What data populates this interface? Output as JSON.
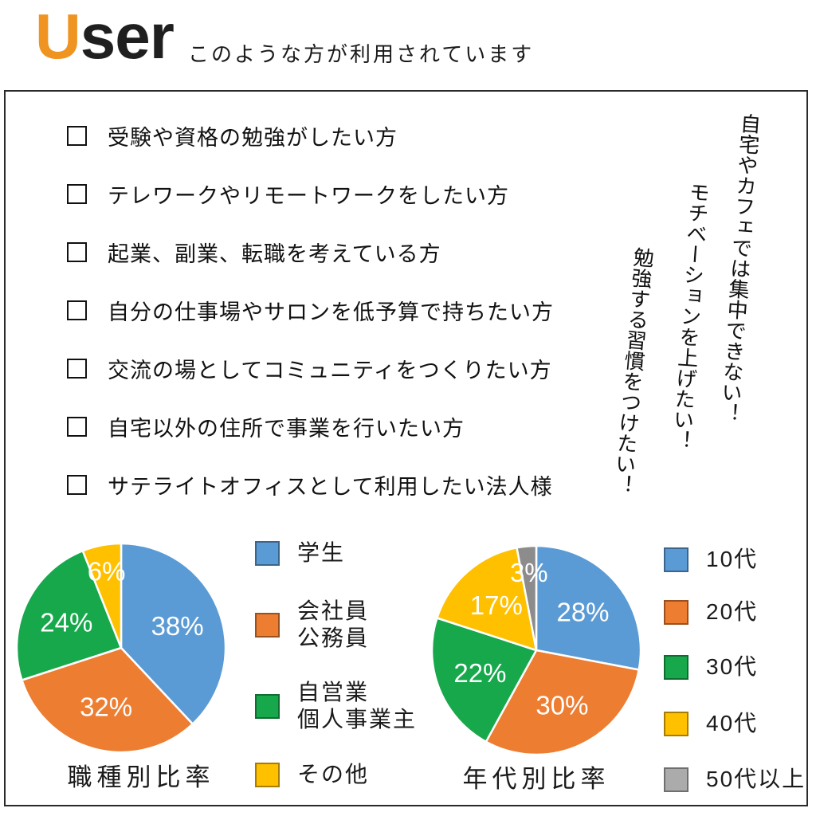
{
  "header": {
    "logo_accent": "U",
    "logo_rest": "ser",
    "subtitle": "このような方が利用されています"
  },
  "checklist": {
    "items": [
      "受験や資格の勉強がしたい方",
      "テレワークやリモートワークをしたい方",
      "起業、副業、転職を考えている方",
      "自分の仕事場やサロンを低予算で持ちたい方",
      "交流の場としてコミュニティをつくりたい方",
      "自宅以外の住所で事業を行いたい方",
      "サテライトオフィスとして利用したい法人様"
    ]
  },
  "notes": [
    "自宅やカフェでは集中できない！",
    "モチベーションを上げたい！",
    "勉強する習慣をつけたい！"
  ],
  "colors": {
    "accent_orange": "#EF9421",
    "blue": "#5B9BD5",
    "orange": "#ED7D31",
    "green": "#17A84C",
    "yellow": "#FFC000",
    "gray": "#8C8C8C",
    "slice_label": "#FFFFFF",
    "box_border": "#2A2A2A"
  },
  "chart_data": [
    {
      "type": "pie",
      "title": "職種別比率",
      "legend_position": "right",
      "start_angle_deg": 0,
      "direction": "clockwise",
      "slices": [
        {
          "label": "学生",
          "label_lines": [
            "学生"
          ],
          "value": 38,
          "pct_label": "38%",
          "color": "#5B9BD5"
        },
        {
          "label": "会社員 公務員",
          "label_lines": [
            "会社員",
            "公務員"
          ],
          "value": 32,
          "pct_label": "32%",
          "color": "#ED7D31"
        },
        {
          "label": "自営業 個人事業主",
          "label_lines": [
            "自営業",
            "個人事業主"
          ],
          "value": 24,
          "pct_label": "24%",
          "color": "#17A84C"
        },
        {
          "label": "その他",
          "label_lines": [
            "その他"
          ],
          "value": 6,
          "pct_label": "6%",
          "color": "#FFC000"
        }
      ]
    },
    {
      "type": "pie",
      "title": "年代別比率",
      "legend_position": "right",
      "start_angle_deg": 0,
      "direction": "clockwise",
      "slices": [
        {
          "label": "10代",
          "label_lines": [
            "10代"
          ],
          "value": 28,
          "pct_label": "28%",
          "color": "#5B9BD5"
        },
        {
          "label": "20代",
          "label_lines": [
            "20代"
          ],
          "value": 30,
          "pct_label": "30%",
          "color": "#ED7D31"
        },
        {
          "label": "30代",
          "label_lines": [
            "30代"
          ],
          "value": 22,
          "pct_label": "22%",
          "color": "#17A84C"
        },
        {
          "label": "40代",
          "label_lines": [
            "40代"
          ],
          "value": 17,
          "pct_label": "17%",
          "color": "#FFC000"
        },
        {
          "label": "50代以上",
          "label_lines": [
            "50代以上"
          ],
          "value": 3,
          "pct_label": "3%",
          "color": "#8C8C8C",
          "legend_color": "#ABABAB"
        }
      ]
    }
  ]
}
